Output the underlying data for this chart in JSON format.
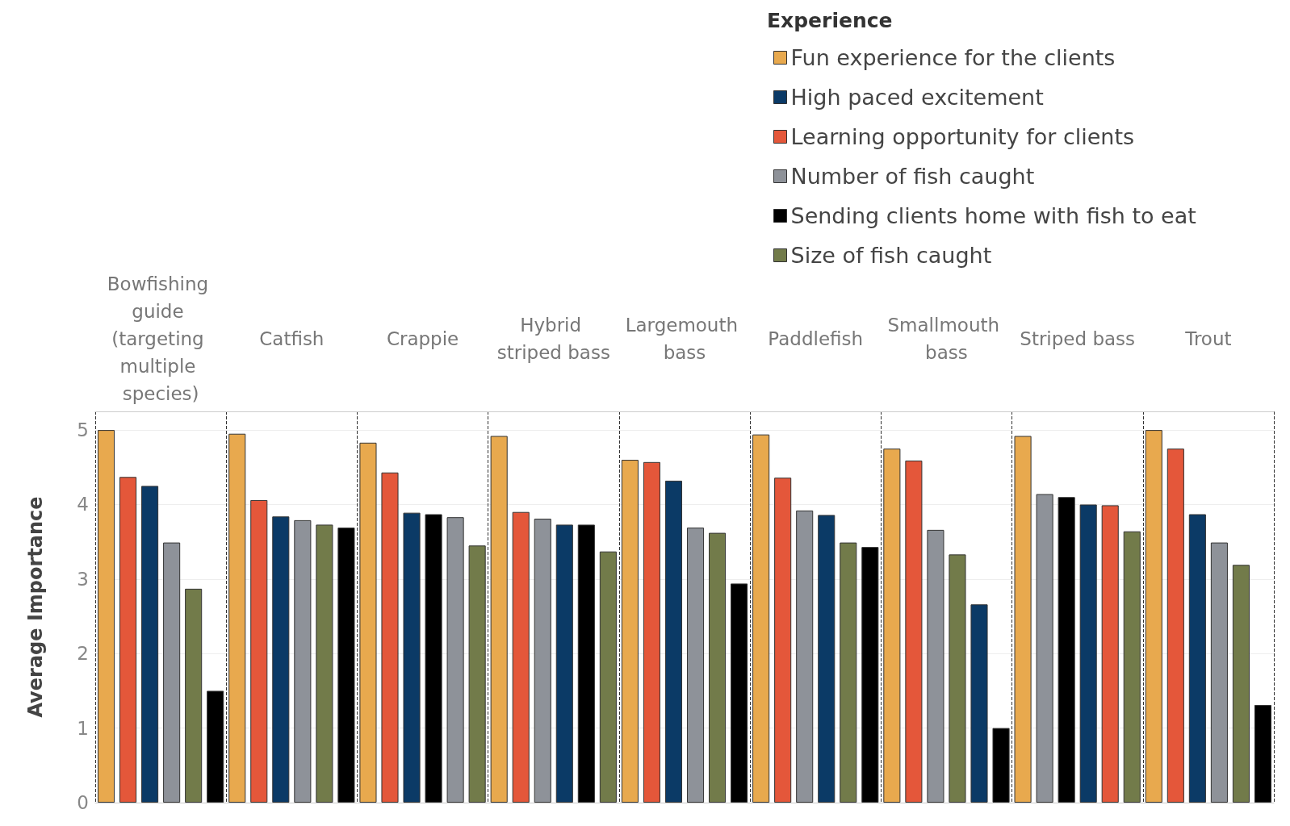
{
  "chart_data": {
    "type": "bar",
    "ylabel": "Average Importance",
    "legend_title": "Experience",
    "legend": "top right",
    "grid": "y",
    "categories": [
      "Bowfishing guide (targeting multiple species)",
      "Catfish",
      "Crappie",
      "Hybrid striped bass",
      "Largemouth bass",
      "Paddlefish",
      "Smallmouth bass",
      "Striped bass",
      "Trout"
    ],
    "ylim": [
      0,
      5.25
    ],
    "yticks": [
      0,
      1,
      2,
      3,
      4,
      5
    ],
    "series": [
      {
        "name": "Fun experience for the clients",
        "color": "#e8a94e",
        "values": [
          5.0,
          4.95,
          4.83,
          4.92,
          4.6,
          4.94,
          4.75,
          4.92,
          5.0
        ]
      },
      {
        "name": "High paced excitement",
        "color": "#0b3a66",
        "values": [
          4.25,
          3.84,
          3.89,
          3.73,
          4.32,
          3.86,
          2.66,
          4.0,
          3.87
        ]
      },
      {
        "name": "Learning opportunity for clients",
        "color": "#e4573a",
        "values": [
          4.37,
          4.06,
          4.43,
          3.9,
          4.57,
          4.36,
          4.59,
          3.99,
          4.75
        ]
      },
      {
        "name": "Number of fish caught",
        "color": "#8e9299",
        "values": [
          3.49,
          3.79,
          3.83,
          3.81,
          3.69,
          3.92,
          3.66,
          4.14,
          3.49
        ]
      },
      {
        "name": "Sending clients home with fish to eat",
        "color": "#000000",
        "values": [
          1.5,
          3.69,
          3.87,
          3.73,
          2.94,
          3.43,
          1.0,
          4.1,
          1.31
        ]
      },
      {
        "name": "Size of fish caught",
        "color": "#727b4a",
        "values": [
          2.87,
          3.73,
          3.45,
          3.37,
          3.62,
          3.49,
          3.33,
          3.64,
          3.19
        ]
      }
    ]
  }
}
